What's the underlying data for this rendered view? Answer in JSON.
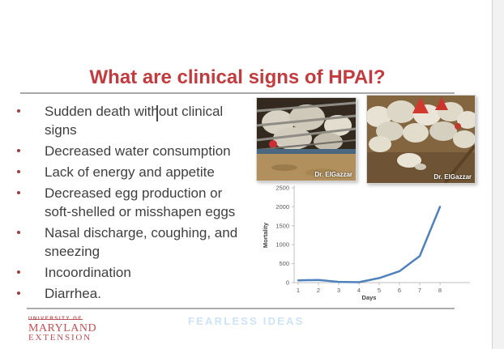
{
  "slide": {
    "title": "What are clinical signs of HPAI?",
    "bullets": [
      "Sudden death without clinical\nsigns",
      "Decreased water consumption",
      "Lack of energy and appetite",
      "Decreased egg production or\nsoft-shelled or misshapen eggs",
      "Nasal discharge, coughing, and\nsneezing",
      "Incoordination",
      "Diarrhea."
    ],
    "photos": [
      {
        "credit": "Dr. ElGazzar"
      },
      {
        "credit": "Dr. ElGazzar"
      }
    ],
    "footer": {
      "logo_line1": "UNIVERSITY OF",
      "logo_line2": "MARYLAND",
      "logo_line3": "EXTENSION",
      "tagline": "FEARLESS IDEAS"
    }
  },
  "chart_data": {
    "type": "line",
    "x": [
      1,
      2,
      3,
      4,
      5,
      6,
      7,
      8
    ],
    "series": [
      {
        "name": "Mortality",
        "values": [
          60,
          70,
          20,
          10,
          120,
          300,
          700,
          2000
        ]
      }
    ],
    "title": "",
    "xlabel": "Days",
    "ylabel": "Mortality",
    "ylim": [
      0,
      2500
    ],
    "yticks": [
      0,
      500,
      1000,
      1500,
      2000,
      2500
    ],
    "grid": false,
    "legend": "none",
    "line_color": "#4f81bd"
  },
  "colors": {
    "title_red": "#c23b3f",
    "bullet_text": "#3f3f3f",
    "bullet_dot": "#a03a3e",
    "divider_gray": "#a8a8a8",
    "chart_line_blue": "#4f81bd",
    "chart_text_gray": "#595959",
    "logo_red": "#c05055",
    "tagline_blue": "#cde3f6"
  }
}
